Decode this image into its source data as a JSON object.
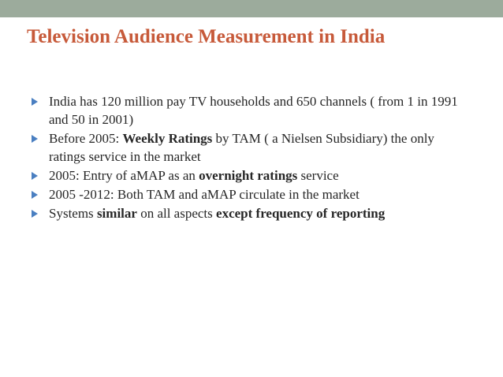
{
  "slide": {
    "title": "Television Audience Measurement in India",
    "bullets": [
      {
        "parts": [
          "India has 120 million pay TV households and 650 channels ( from 1 in 1991 and 50 in 2001)"
        ]
      },
      {
        "parts": [
          "Before 2005: ",
          "Weekly Ratings",
          " by TAM ( a Nielsen Subsidiary) the only ratings service in the market"
        ]
      },
      {
        "parts": [
          "2005: Entry of aMAP as an ",
          "overnight ratings",
          " service"
        ]
      },
      {
        "parts": [
          "2005 -2012: Both TAM and aMAP circulate in the market"
        ]
      },
      {
        "parts": [
          "Systems ",
          "similar",
          " on all aspects ",
          "except frequency of reporting"
        ]
      }
    ]
  },
  "colors": {
    "top_bar": "#9cab9c",
    "title": "#c75a3a",
    "bullet_marker": "#4a7fc1",
    "text": "#262626"
  }
}
